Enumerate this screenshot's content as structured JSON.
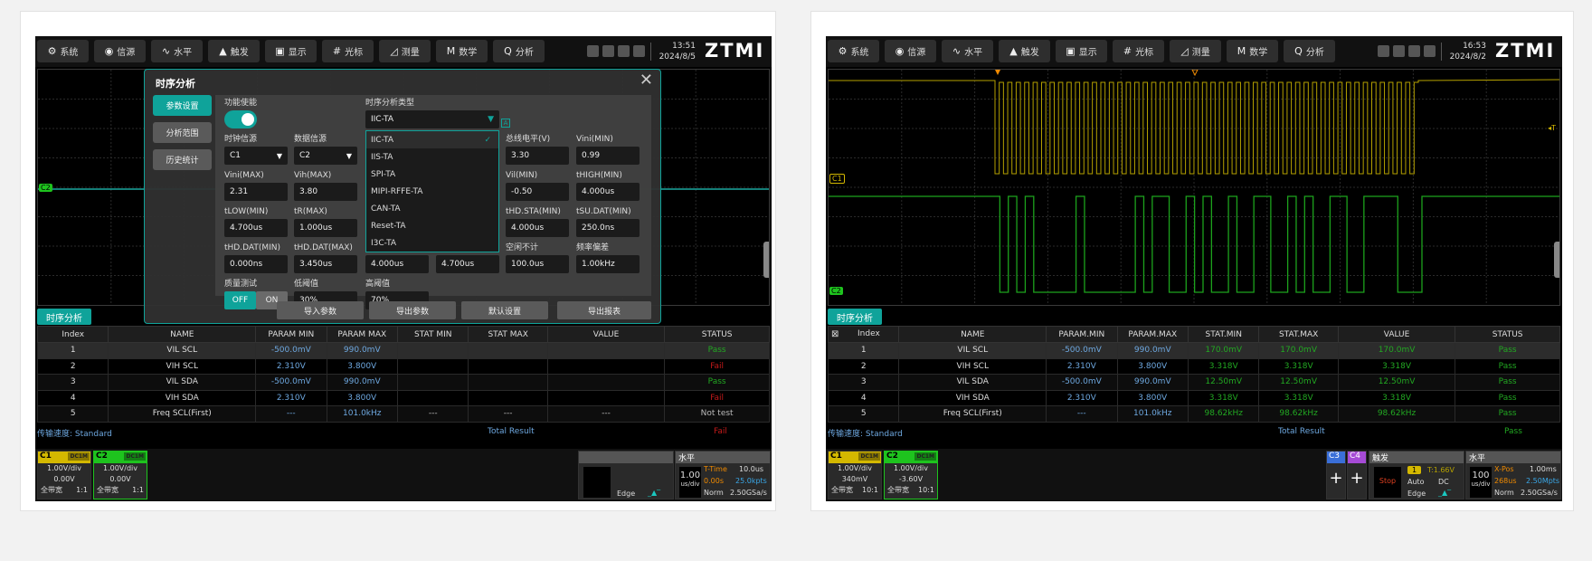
{
  "colors": {
    "accent": "#0fa39a",
    "c1": "#d4b800",
    "c2": "#1ec31e",
    "c3": "#3a6fd8",
    "c4": "#a64bd6",
    "pass": "#22a822",
    "fail": "#c41a1a",
    "param": "#6ea8e0"
  },
  "toolbar": {
    "buttons": [
      {
        "icon": "gear-icon",
        "glyph": "⚙",
        "label": "系统"
      },
      {
        "icon": "source-icon",
        "glyph": "◉",
        "label": "信源"
      },
      {
        "icon": "horizontal-icon",
        "glyph": "∿",
        "label": "水平"
      },
      {
        "icon": "trigger-icon",
        "glyph": "▲",
        "label": "触发"
      },
      {
        "icon": "display-icon",
        "glyph": "▣",
        "label": "显示"
      },
      {
        "icon": "cursor-icon",
        "glyph": "#",
        "label": "光标"
      },
      {
        "icon": "measure-icon",
        "glyph": "◿",
        "label": "测量"
      },
      {
        "icon": "math-icon",
        "glyph": "M",
        "label": "数学"
      },
      {
        "icon": "search-icon",
        "glyph": "Q",
        "label": "分析"
      }
    ],
    "logo": "ZTMI"
  },
  "screens": [
    {
      "time": "13:51",
      "date": "2024/8/5",
      "tab": "时序分析",
      "table": {
        "headers": [
          "Index",
          "NAME",
          "PARAM MIN",
          "PARAM MAX",
          "STAT MIN",
          "STAT MAX",
          "VALUE",
          "STATUS"
        ],
        "rows": [
          {
            "index": "1",
            "name": "VIL SCL",
            "pmin": "-500.0mV",
            "pmax": "990.0mV",
            "smin": "",
            "smax": "",
            "value": "",
            "status": "Pass"
          },
          {
            "index": "2",
            "name": "VIH SCL",
            "pmin": "2.310V",
            "pmax": "3.800V",
            "smin": "",
            "smax": "",
            "value": "",
            "status": "Fail"
          },
          {
            "index": "3",
            "name": "VIL SDA",
            "pmin": "-500.0mV",
            "pmax": "990.0mV",
            "smin": "",
            "smax": "",
            "value": "",
            "status": "Pass"
          },
          {
            "index": "4",
            "name": "VIH SDA",
            "pmin": "2.310V",
            "pmax": "3.800V",
            "smin": "",
            "smax": "",
            "value": "",
            "status": "Fail"
          },
          {
            "index": "5",
            "name": "Freq SCL(First)",
            "pmin": "---",
            "pmax": "101.0kHz",
            "smin": "---",
            "smax": "---",
            "value": "---",
            "status": "Not test"
          }
        ]
      },
      "speed": "传输速度: Standard",
      "total_label": "Total Result",
      "total": "Fail",
      "channels": [
        {
          "name": "C1",
          "coupling": "DC1M",
          "scale": "1.00V/div",
          "offset": "0.00V",
          "bw": "全带宽",
          "probe": "1:1"
        },
        {
          "name": "C2",
          "coupling": "DC1M",
          "scale": "1.00V/div",
          "offset": "0.00V",
          "bw": "全带宽",
          "probe": "1:1"
        }
      ],
      "horizontal": {
        "title": "水平",
        "scale": "1.00",
        "unit": "us/div",
        "mode_label": "T-Time",
        "mode_value": "10.0us",
        "pos": "0.00s",
        "pts": "25.0kpts",
        "acq": "Norm",
        "rate": "2.50GSa/s"
      },
      "trigger": {
        "type": "Edge"
      }
    },
    {
      "time": "16:53",
      "date": "2024/8/2",
      "tab": "时序分析",
      "table": {
        "headers": [
          "Index",
          "NAME",
          "PARAM.MIN",
          "PARAM.MAX",
          "STAT.MIN",
          "STAT.MAX",
          "VALUE",
          "STATUS"
        ],
        "rows": [
          {
            "index": "1",
            "name": "VIL SCL",
            "pmin": "-500.0mV",
            "pmax": "990.0mV",
            "smin": "170.0mV",
            "smax": "170.0mV",
            "value": "170.0mV",
            "status": "Pass"
          },
          {
            "index": "2",
            "name": "VIH SCL",
            "pmin": "2.310V",
            "pmax": "3.800V",
            "smin": "3.318V",
            "smax": "3.318V",
            "value": "3.318V",
            "status": "Pass"
          },
          {
            "index": "3",
            "name": "VIL SDA",
            "pmin": "-500.0mV",
            "pmax": "990.0mV",
            "smin": "12.50mV",
            "smax": "12.50mV",
            "value": "12.50mV",
            "status": "Pass"
          },
          {
            "index": "4",
            "name": "VIH SDA",
            "pmin": "2.310V",
            "pmax": "3.800V",
            "smin": "3.318V",
            "smax": "3.318V",
            "value": "3.318V",
            "status": "Pass"
          },
          {
            "index": "5",
            "name": "Freq SCL(First)",
            "pmin": "---",
            "pmax": "101.0kHz",
            "smin": "98.62kHz",
            "smax": "98.62kHz",
            "value": "98.62kHz",
            "status": "Pass"
          }
        ]
      },
      "speed": "传输速度: Standard",
      "total_label": "Total Result",
      "total": "Pass",
      "channels": [
        {
          "name": "C1",
          "coupling": "DC1M",
          "scale": "1.00V/div",
          "offset": "340mV",
          "bw": "全带宽",
          "probe": "10:1"
        },
        {
          "name": "C2",
          "coupling": "DC1M",
          "scale": "1.00V/div",
          "offset": "-3.60V",
          "bw": "全带宽",
          "probe": "10:1"
        }
      ],
      "extra_channels": [
        "C3",
        "C4"
      ],
      "horizontal": {
        "title": "水平",
        "scale": "100",
        "unit": "us/div",
        "mode_label": "X-Pos",
        "mode_value": "1.00ms",
        "pos": "268us",
        "pts": "2.50Mpts",
        "acq": "Norm",
        "rate": "2.50GSa/s"
      },
      "trigger": {
        "title": "触发",
        "state": "Stop",
        "source": "1",
        "level": "T:1.66V",
        "mode": "Auto",
        "coupling": "DC",
        "type": "Edge"
      }
    }
  ],
  "dialog": {
    "title": "时序分析",
    "nav": [
      "参数设置",
      "分析范围",
      "历史统计"
    ],
    "enable_label": "功能使能",
    "enable_on": true,
    "type_label": "时序分析类型",
    "type_value": "IIC-TA",
    "type_options": [
      "IIC-TA",
      "IIS-TA",
      "SPI-TA",
      "MIPI-RFFE-TA",
      "CAN-TA",
      "Reset-TA",
      "I3C-TA"
    ],
    "fields": [
      {
        "label": "时钟信源",
        "value": "C1",
        "select": true
      },
      {
        "label": "数据信源",
        "value": "C2",
        "select": true
      },
      {
        "label": "总线电平(V)",
        "value": "3.30"
      },
      {
        "label": "Vini(MIN)",
        "value": "0.99"
      },
      {
        "label": "Vini(MAX)",
        "value": "2.31"
      },
      {
        "label": "Vih(MAX)",
        "value": "3.80"
      },
      {
        "label": "Vil(MIN)",
        "value": "-0.50"
      },
      {
        "label": "tHIGH(MIN)",
        "value": "4.000us"
      },
      {
        "label": "tLOW(MIN)",
        "value": "4.700us"
      },
      {
        "label": "tR(MAX)",
        "value": "1.000us"
      },
      {
        "label": "tHD.STA(MIN)",
        "value": "4.000us"
      },
      {
        "label": "tSU.DAT(MIN)",
        "value": "250.0ns"
      },
      {
        "label": "tHD.DAT(MIN)",
        "value": "0.000ns"
      },
      {
        "label": "tHD.DAT(MAX)",
        "value": "3.450us"
      },
      {
        "label": "",
        "value": "4.000us"
      },
      {
        "label": "",
        "value": "4.700us"
      },
      {
        "label": "空闲不计",
        "value": "100.0us"
      },
      {
        "label": "频率偏差",
        "value": "1.00kHz"
      },
      {
        "label": "低阈值",
        "value": "30%"
      },
      {
        "label": "高阈值",
        "value": "70%"
      }
    ],
    "quality_label": "质量测试",
    "quality_off": "OFF",
    "quality_on": "ON",
    "quality_selected": "OFF",
    "buttons": [
      "导入参数",
      "导出参数",
      "默认设置",
      "导出报表"
    ],
    "close_glyph": "✕"
  }
}
